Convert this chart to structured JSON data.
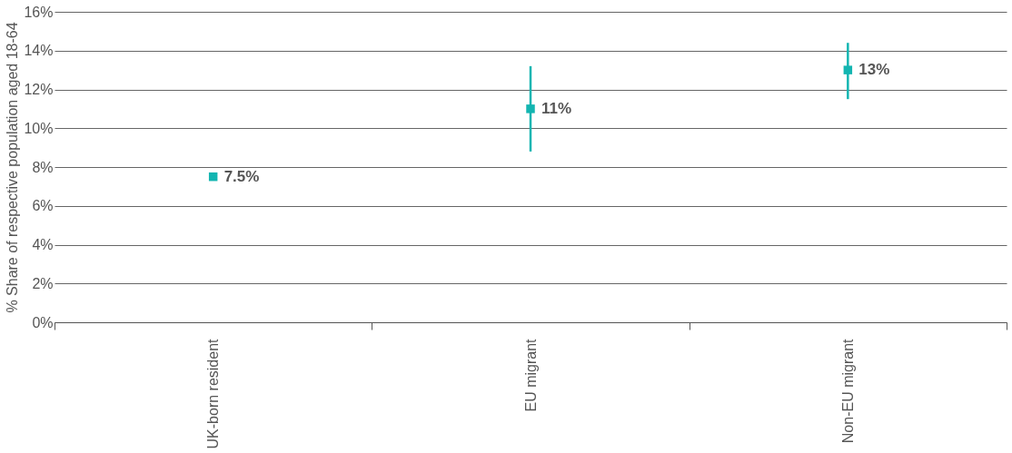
{
  "chart_data": {
    "type": "scatter",
    "ylabel": "% Share of respective population aged 18-64",
    "categories": [
      "UK-born resident",
      "EU migrant",
      "Non-EU migrant"
    ],
    "series": [
      {
        "color": "#13b5b1",
        "values": [
          7.5,
          11,
          13
        ],
        "errors": [
          [
            7.3,
            7.7
          ],
          [
            8.8,
            13.2
          ],
          [
            11.5,
            14.4
          ]
        ],
        "value_labels": [
          "7.5%",
          "11%",
          "13%"
        ]
      }
    ],
    "ylim": [
      0,
      16
    ],
    "yticks": [
      {
        "value": 0,
        "label": "0%"
      },
      {
        "value": 2,
        "label": "2%"
      },
      {
        "value": 4,
        "label": "4%"
      },
      {
        "value": 6,
        "label": "6%"
      },
      {
        "value": 8,
        "label": "8%"
      },
      {
        "value": 10,
        "label": "10%"
      },
      {
        "value": 12,
        "label": "12%"
      },
      {
        "value": 14,
        "label": "14%"
      },
      {
        "value": 16,
        "label": "16%"
      }
    ],
    "grid": "y",
    "marker": "square"
  }
}
